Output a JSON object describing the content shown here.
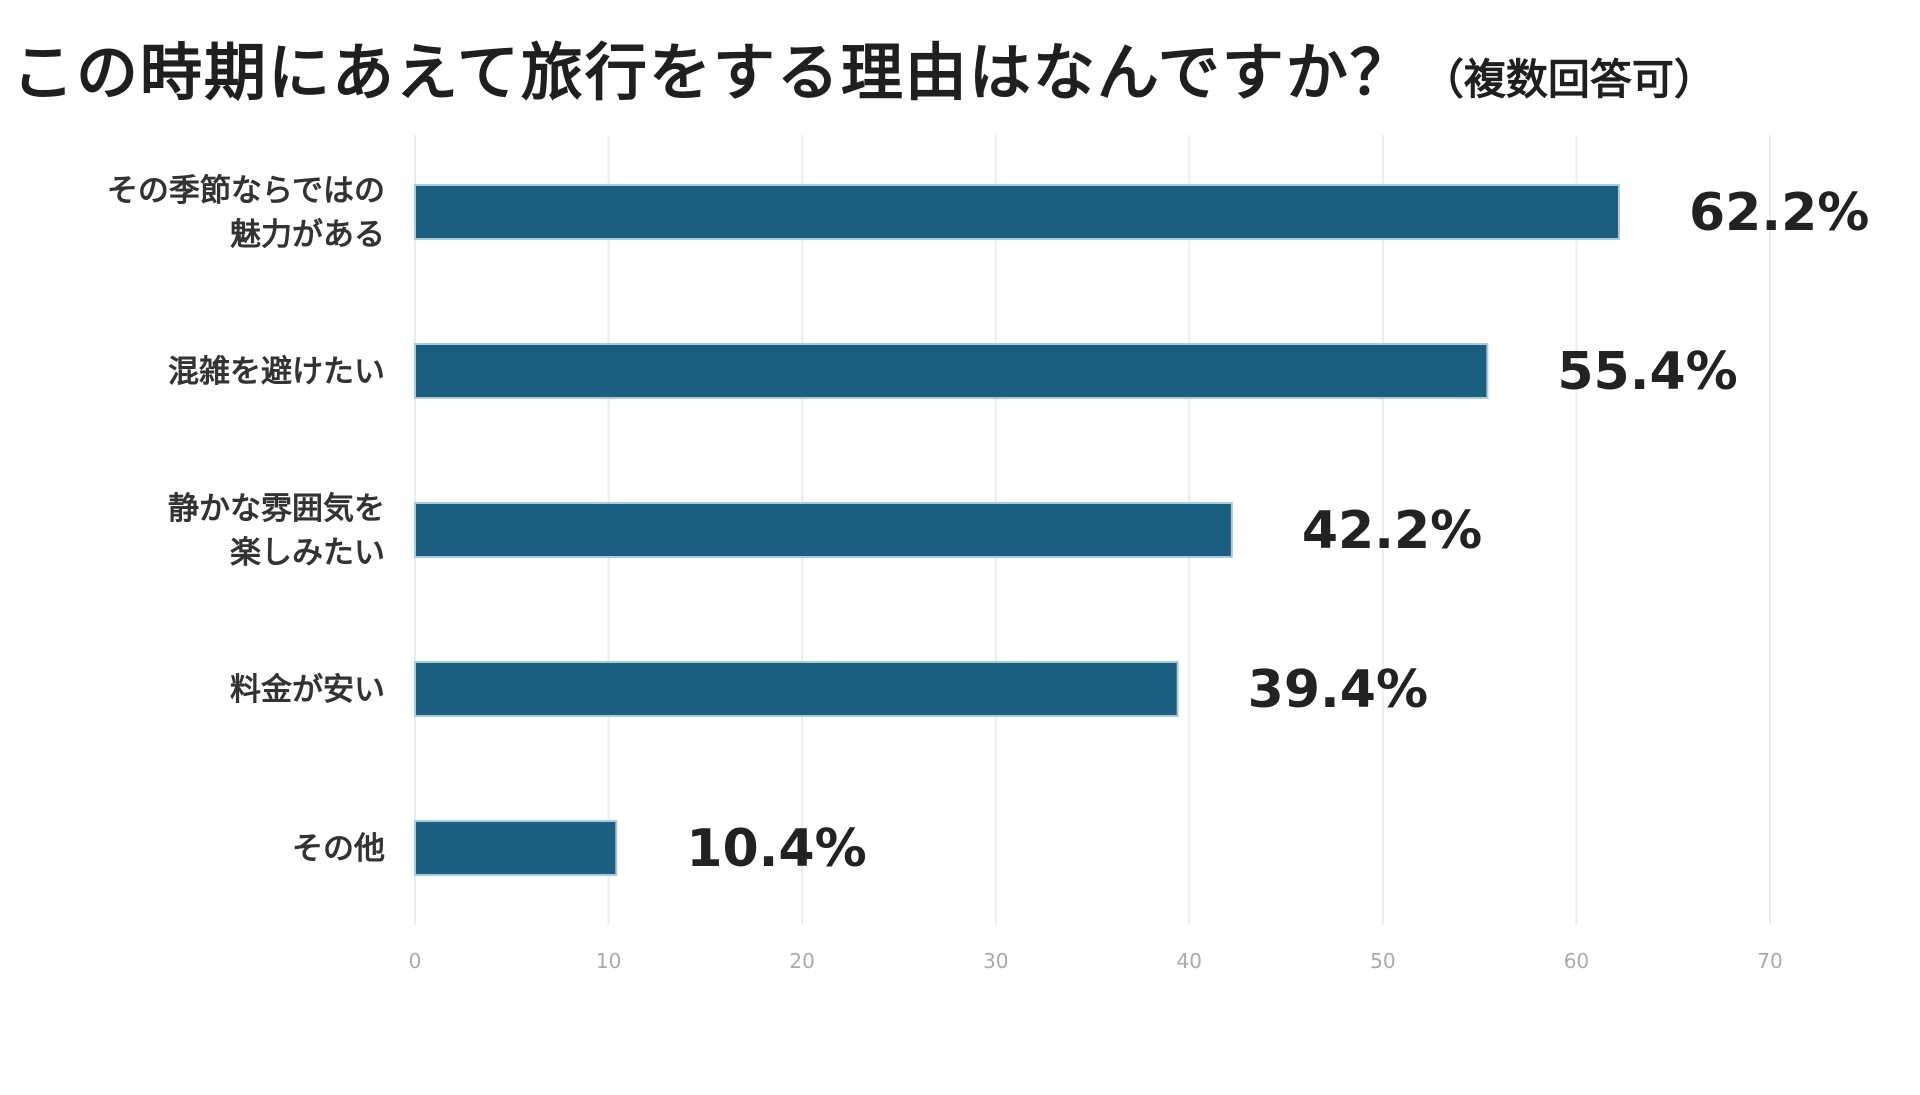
{
  "chart_data": {
    "type": "bar",
    "orientation": "horizontal",
    "title": "この時期にあえて旅行をする理由はなんですか？",
    "subtitle": "（複数回答可）",
    "categories": [
      [
        "その季節ならではの",
        "魅力がある"
      ],
      [
        "混雑を避けたい"
      ],
      [
        "静かな雰囲気を",
        "楽しみたい"
      ],
      [
        "料金が安い"
      ],
      [
        "その他"
      ]
    ],
    "values": [
      62.2,
      55.4,
      42.2,
      39.4,
      10.4
    ],
    "value_labels": [
      "62.2%",
      "55.4%",
      "42.2%",
      "39.4%",
      "10.4%"
    ],
    "xlim": [
      0,
      70
    ],
    "xticks": [
      "0",
      "10",
      "20",
      "30",
      "40",
      "50",
      "60",
      "70"
    ],
    "grid": true,
    "bar_color": "#1a5e80",
    "bar_border_color": "#a9cbe0",
    "grid_color": "#ececec"
  }
}
